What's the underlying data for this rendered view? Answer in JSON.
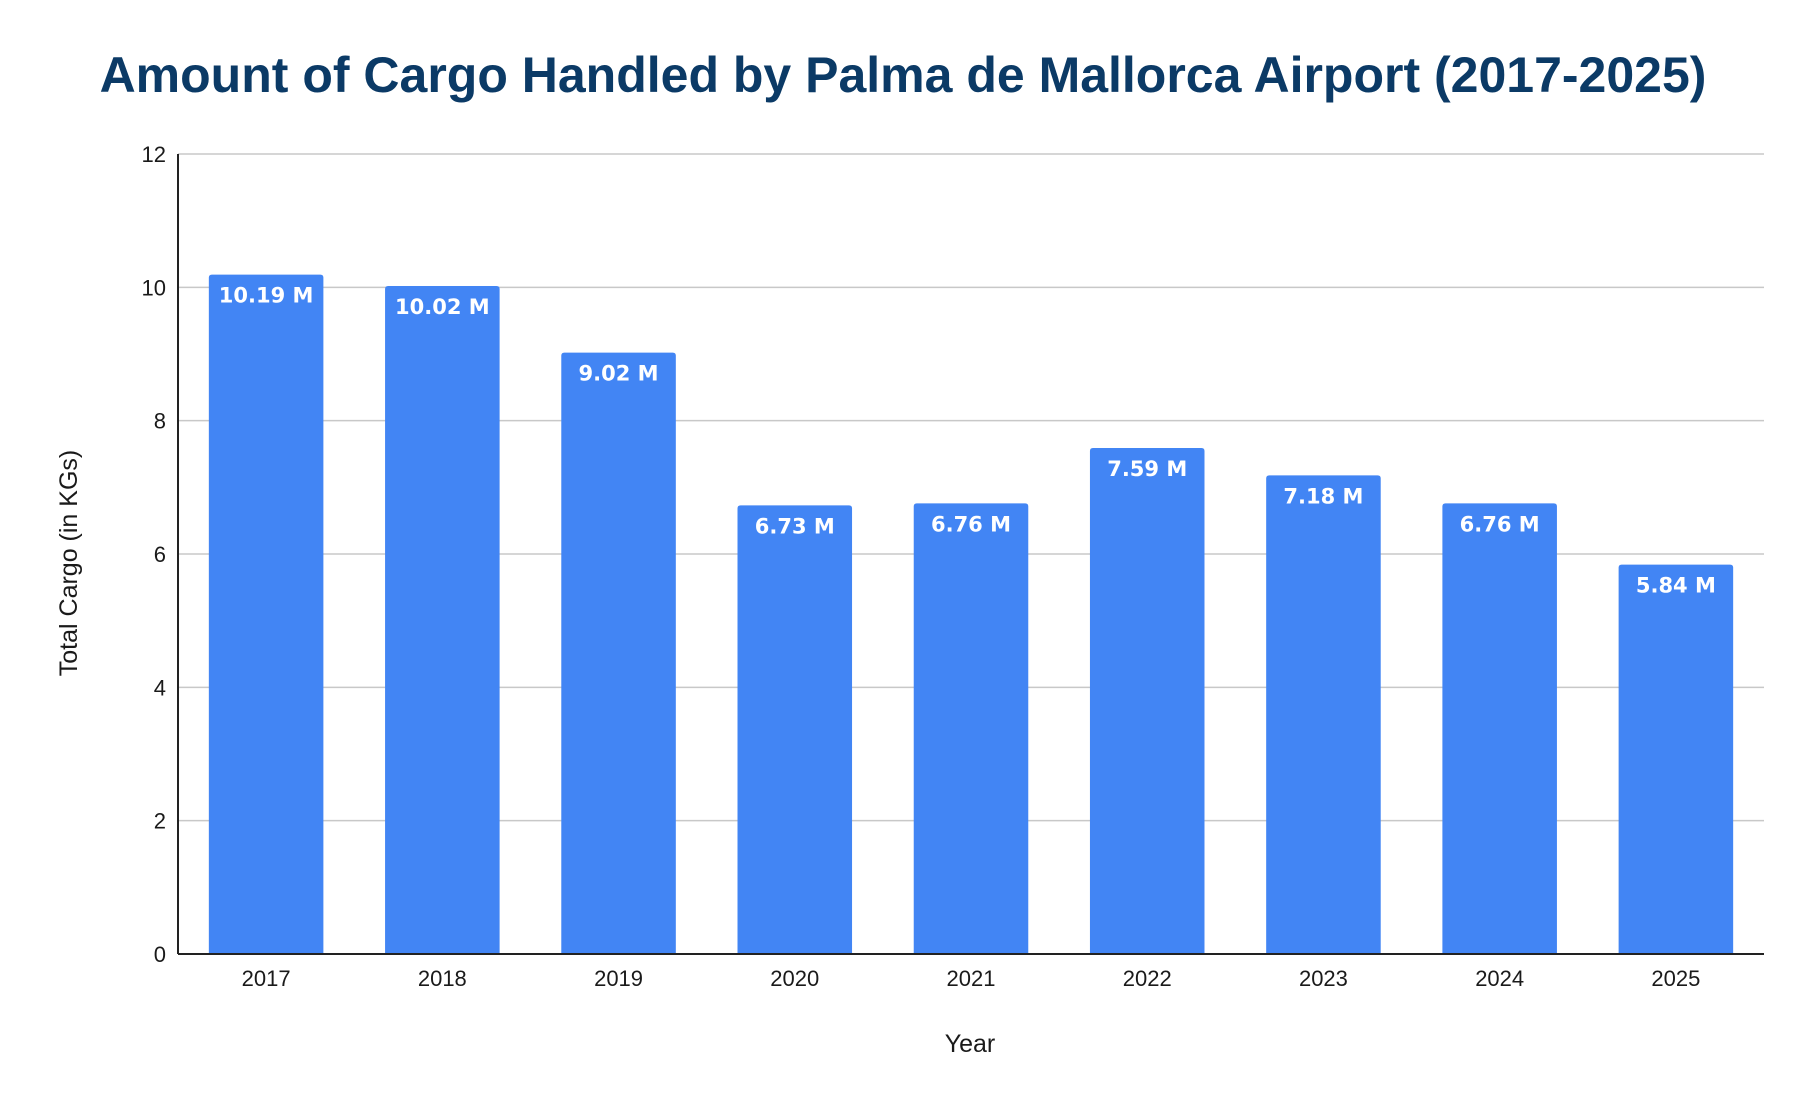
{
  "chart_data": {
    "type": "bar",
    "title": "Amount of Cargo Handled by Palma de Mallorca Airport (2017-2025)",
    "xlabel": "Year",
    "ylabel": "Total Cargo (in KGs)",
    "categories": [
      "2017",
      "2018",
      "2019",
      "2020",
      "2021",
      "2022",
      "2023",
      "2024",
      "2025"
    ],
    "values": [
      10.19,
      10.02,
      9.02,
      6.73,
      6.76,
      7.59,
      7.18,
      6.76,
      5.84
    ],
    "data_labels": [
      "10.19 M",
      "10.02 M",
      "9.02 M",
      "6.73 M",
      "6.76 M",
      "7.59 M",
      "7.18 M",
      "6.76 M",
      "5.84 M"
    ],
    "ylim": [
      0,
      12
    ],
    "yticks": [
      "0",
      "2",
      "4",
      "6",
      "8",
      "10",
      "12"
    ],
    "grid": true,
    "legend": "none",
    "bar_color": "#4285f4",
    "title_color": "#0b3a66"
  }
}
